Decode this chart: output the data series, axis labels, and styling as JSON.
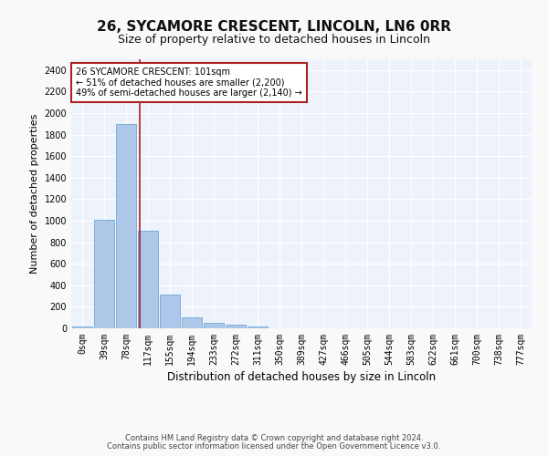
{
  "title1": "26, SYCAMORE CRESCENT, LINCOLN, LN6 0RR",
  "title2": "Size of property relative to detached houses in Lincoln",
  "xlabel": "Distribution of detached houses by size in Lincoln",
  "ylabel": "Number of detached properties",
  "categories": [
    "0sqm",
    "39sqm",
    "78sqm",
    "117sqm",
    "155sqm",
    "194sqm",
    "233sqm",
    "272sqm",
    "311sqm",
    "350sqm",
    "389sqm",
    "427sqm",
    "466sqm",
    "505sqm",
    "544sqm",
    "583sqm",
    "622sqm",
    "661sqm",
    "700sqm",
    "738sqm",
    "777sqm"
  ],
  "values": [
    20,
    1010,
    1900,
    910,
    310,
    105,
    55,
    30,
    20,
    0,
    0,
    0,
    0,
    0,
    0,
    0,
    0,
    0,
    0,
    0,
    0
  ],
  "bar_color": "#aec6e8",
  "bar_edge_color": "#5a9fd4",
  "background_color": "#eef3fb",
  "grid_color": "#ffffff",
  "fig_background": "#f9f9f9",
  "vline_x": 2.62,
  "vline_color": "#aa2222",
  "annotation_text": "26 SYCAMORE CRESCENT: 101sqm\n← 51% of detached houses are smaller (2,200)\n49% of semi-detached houses are larger (2,140) →",
  "annotation_box_color": "#aa2222",
  "annotation_bg": "#ffffff",
  "ylim": [
    0,
    2500
  ],
  "yticks": [
    0,
    200,
    400,
    600,
    800,
    1000,
    1200,
    1400,
    1600,
    1800,
    2000,
    2200,
    2400
  ],
  "footer1": "Contains HM Land Registry data © Crown copyright and database right 2024.",
  "footer2": "Contains public sector information licensed under the Open Government Licence v3.0.",
  "title1_fontsize": 11,
  "title2_fontsize": 9,
  "tick_fontsize": 7,
  "ylabel_fontsize": 8,
  "xlabel_fontsize": 8.5,
  "footer_fontsize": 6,
  "annotation_fontsize": 7
}
